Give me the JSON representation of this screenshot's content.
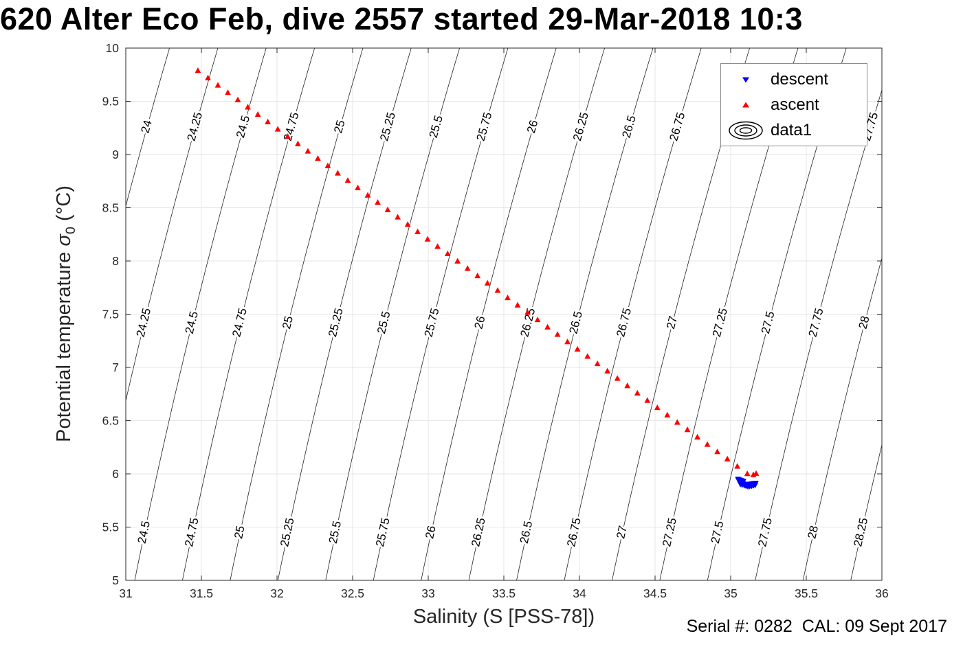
{
  "title": "620 Alter Eco Feb, dive 2557 started 29-Mar-2018 10:3",
  "axes": {
    "xlabel": "Salinity (S [PSS-78])",
    "ylabel_prefix": "Potential temperature ",
    "ylabel_sigma": "σ",
    "ylabel_sub": "0",
    "ylabel_suffix": " (°C)",
    "x_min": 31,
    "x_max": 36,
    "y_min": 5,
    "y_max": 10,
    "x_ticks": [
      31,
      31.5,
      32,
      32.5,
      33,
      33.5,
      34,
      34.5,
      35,
      35.5,
      36
    ],
    "y_ticks": [
      5,
      5.5,
      6,
      6.5,
      7,
      7.5,
      8,
      8.5,
      9,
      9.5,
      10
    ]
  },
  "legend": {
    "items": [
      {
        "label": "descent",
        "marker": "triangle-down",
        "color": "#0000ff"
      },
      {
        "label": "ascent",
        "marker": "triangle-up",
        "color": "#ff0000"
      },
      {
        "label": "data1",
        "marker": "contour-ellipses",
        "color": "#000000"
      }
    ]
  },
  "annotation": {
    "text": "Serial #: 0282  CAL: 09 Sept 2017"
  },
  "chart_data": {
    "type": "scatter",
    "title": "620 Alter Eco Feb, dive 2557 started 29-Mar-2018 10:3",
    "xlabel": "Salinity (S [PSS-78])",
    "ylabel": "Potential temperature σ0 (°C)",
    "xlim": [
      31,
      36
    ],
    "ylim": [
      5,
      10
    ],
    "grid": true,
    "legend_position": "top-right",
    "contours": {
      "variable": "potential density σ0 isopycnals (kg/m³)",
      "levels": [
        24,
        24.25,
        24.5,
        24.75,
        25,
        25.25,
        25.5,
        25.75,
        26,
        26.25,
        26.5,
        26.75,
        27,
        27.25,
        27.5,
        27.75,
        28,
        28.25
      ],
      "label_rows_T": [
        9.26,
        7.42,
        5.45
      ],
      "legend_name": "data1"
    },
    "series": [
      {
        "name": "ascent",
        "marker": "triangle-up",
        "color": "#ff0000",
        "points": [
          [
            31.477,
            9.787
          ],
          [
            31.543,
            9.718
          ],
          [
            31.609,
            9.649
          ],
          [
            31.675,
            9.58
          ],
          [
            31.741,
            9.512
          ],
          [
            31.807,
            9.443
          ],
          [
            31.873,
            9.374
          ],
          [
            31.939,
            9.305
          ],
          [
            32.005,
            9.236
          ],
          [
            32.071,
            9.167
          ],
          [
            32.138,
            9.098
          ],
          [
            32.204,
            9.03
          ],
          [
            32.27,
            8.961
          ],
          [
            32.336,
            8.892
          ],
          [
            32.402,
            8.823
          ],
          [
            32.468,
            8.754
          ],
          [
            32.534,
            8.685
          ],
          [
            32.6,
            8.616
          ],
          [
            32.666,
            8.548
          ],
          [
            32.732,
            8.479
          ],
          [
            32.798,
            8.41
          ],
          [
            32.864,
            8.341
          ],
          [
            32.93,
            8.272
          ],
          [
            32.996,
            8.203
          ],
          [
            33.062,
            8.134
          ],
          [
            33.128,
            8.066
          ],
          [
            33.194,
            7.997
          ],
          [
            33.26,
            7.928
          ],
          [
            33.326,
            7.859
          ],
          [
            33.392,
            7.79
          ],
          [
            33.459,
            7.721
          ],
          [
            33.525,
            7.652
          ],
          [
            33.591,
            7.584
          ],
          [
            33.657,
            7.515
          ],
          [
            33.723,
            7.446
          ],
          [
            33.789,
            7.377
          ],
          [
            33.855,
            7.308
          ],
          [
            33.921,
            7.239
          ],
          [
            33.987,
            7.17
          ],
          [
            34.053,
            7.102
          ],
          [
            34.119,
            7.033
          ],
          [
            34.185,
            6.964
          ],
          [
            34.251,
            6.895
          ],
          [
            34.317,
            6.826
          ],
          [
            34.383,
            6.757
          ],
          [
            34.449,
            6.688
          ],
          [
            34.515,
            6.62
          ],
          [
            34.581,
            6.551
          ],
          [
            34.647,
            6.482
          ],
          [
            34.714,
            6.413
          ],
          [
            34.78,
            6.344
          ],
          [
            34.846,
            6.275
          ],
          [
            34.912,
            6.206
          ],
          [
            34.978,
            6.138
          ],
          [
            35.044,
            6.069
          ],
          [
            35.11,
            6.0
          ],
          [
            35.15,
            5.99
          ],
          [
            35.168,
            6.002
          ]
        ]
      },
      {
        "name": "descent",
        "marker": "triangle-down",
        "color": "#0000ff",
        "points": [
          [
            35.048,
            5.953
          ],
          [
            35.06,
            5.946
          ],
          [
            35.072,
            5.939
          ],
          [
            35.084,
            5.932
          ],
          [
            35.058,
            5.925
          ],
          [
            35.07,
            5.918
          ],
          [
            35.082,
            5.911
          ],
          [
            35.094,
            5.905
          ],
          [
            35.106,
            5.9
          ],
          [
            35.118,
            5.903
          ],
          [
            35.13,
            5.906
          ],
          [
            35.142,
            5.909
          ],
          [
            35.154,
            5.912
          ],
          [
            35.166,
            5.915
          ],
          [
            35.09,
            5.893
          ],
          [
            35.102,
            5.887
          ],
          [
            35.114,
            5.882
          ],
          [
            35.126,
            5.885
          ],
          [
            35.138,
            5.888
          ],
          [
            35.15,
            5.892
          ],
          [
            35.162,
            5.896
          ],
          [
            35.076,
            5.898
          ],
          [
            35.064,
            5.905
          ],
          [
            35.052,
            5.941
          ]
        ]
      }
    ]
  }
}
